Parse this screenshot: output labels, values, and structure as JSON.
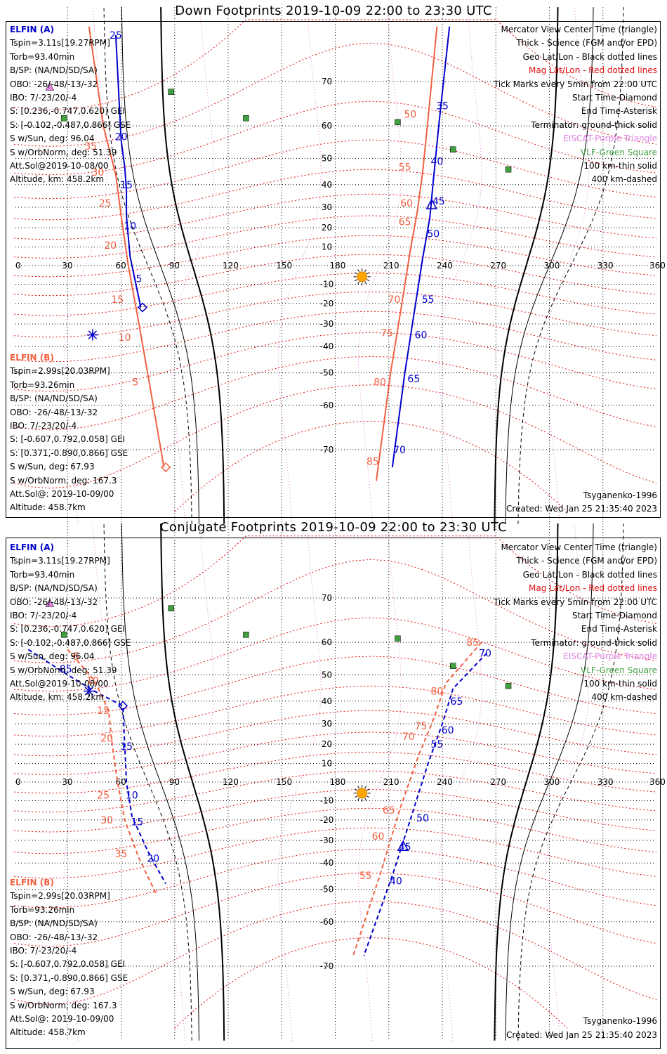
{
  "panels": [
    {
      "id": "down",
      "title": "Down Footprints 2019-10-09 22:00 to 23:30 UTC",
      "sat_a": {
        "name": "ELFIN (A)",
        "lines": [
          "Tspin=3.11s[19.27RPM]",
          "Torb=93.40min",
          "B/SP: (NA/ND/SD/SA)",
          "OBO: -26/-48/-13/-32",
          "IBO: 7/-23/20/-4",
          "S: [0.236,-0.747,0.620] GEI",
          "S: [-0.102,-0.487,0.866] GSE",
          "S w/Sun, deg: 96.04",
          "S w/OrbNorm, deg: 51.39",
          "Att.Sol@2019-10-08/00",
          "Altitude, km: 458.2km"
        ]
      },
      "sat_b": {
        "name": "ELFIN (B)",
        "lines": [
          "Tspin=2.99s[20.03RPM]",
          "Torb=93.26min",
          "B/SP: (NA/ND/SD/SA)",
          "OBO: -26/-48/-13/-32",
          "IBO: 7/-23/20/-4",
          "S: [-0.607,0.792,0.058] GEI",
          "S: [0.371,-0.890,0.866] GSE",
          "S w/Sun, deg: 67.93",
          "S w/OrbNorm, deg: 167.3",
          "Att.Sol@: 2019-10-09/00",
          "Altitude: 458.7km"
        ]
      },
      "footer_left": "",
      "footer_model": "Tsyganenko-1996",
      "footer_created": "Created: Wed Jan 25 21:35:40 2023"
    },
    {
      "id": "conjugate",
      "title": "Conjugate Footprints 2019-10-09 22:00 to 23:30 UTC",
      "sat_a": {
        "name": "ELFIN (A)",
        "lines": [
          "Tspin=3.11s[19.27RPM]",
          "Torb=93.40min",
          "B/SP: (NA/ND/SD/SA)",
          "OBO: -26/-48/-13/-32",
          "IBO: 7/-23/20/-4",
          "S: [0.236,-0.747,0.620] GEI",
          "S: [-0.102,-0.487,0.866] GSE",
          "S w/Sun, deg: 96.04",
          "S w/OrbNorm, deg: 51.39",
          "Att.Sol@2019-10-08/00",
          "Altitude, km: 458.2km"
        ]
      },
      "sat_b": {
        "name": "ELFIN (B)",
        "lines": [
          "Tspin=2.99s[20.03RPM]",
          "Torb=93.26min",
          "B/SP: (NA/ND/SD/SA)",
          "OBO: -26/-48/-13/-32",
          "IBO: 7/-23/20/-4",
          "S: [-0.607,0.792,0.058] GEI",
          "S: [0.371,-0.890,0.866] GSE",
          "S w/Sun, deg: 67.93",
          "S w/OrbNorm, deg: 167.3",
          "Att.Sol@: 2019-10-09/00",
          "Altitude: 458.7km"
        ]
      },
      "footer_model": "Tsyganenko-1996",
      "footer_created": "Created: Wed Jan 25 21:35:40 2023"
    }
  ],
  "legend": [
    {
      "text": "Mercator View Center Time (triangle)",
      "color": "#000000"
    },
    {
      "text": "Thick - Science (FGM and/or EPD)",
      "color": "#000000"
    },
    {
      "text": "Geo Lat/Lon - Black dotted lines",
      "color": "#000000"
    },
    {
      "text": "Mag Lat/Lon - Red dotted lines",
      "color": "#e01010"
    },
    {
      "text": "Tick Marks every 5min from 22:00 UTC",
      "color": "#000000"
    },
    {
      "text": "Start Time-Diamond",
      "color": "#000000"
    },
    {
      "text": "End Time-Asterisk",
      "color": "#000000"
    },
    {
      "text": "Terminator: ground-thick solid",
      "color": "#000000"
    },
    {
      "text": "EISCAT-Purple Triangle",
      "color": "#e080e0"
    },
    {
      "text": "VLF-Green Square",
      "color": "#40a040"
    },
    {
      "text": "100 km-thin solid",
      "color": "#000000"
    },
    {
      "text": "400 km-dashed",
      "color": "#000000"
    }
  ],
  "colors": {
    "sat_a": "#0000cc",
    "sat_b": "#f06040",
    "mag_grid": "#e01010",
    "eiscat": "#e080e0",
    "vlf": "#40a040",
    "sun": "#ffa500"
  },
  "chart_data": [
    {
      "type": "scatter",
      "title": "Down Footprints 2019-10-09 22:00 to 23:30 UTC",
      "projection": "mercator",
      "xlim": [
        0,
        360
      ],
      "ylim": [
        -80,
        80
      ],
      "x_ticks": [
        "0",
        "30",
        "60",
        "90",
        "120",
        "150",
        "180",
        "210",
        "240",
        "270",
        "300",
        "330",
        "360"
      ],
      "y_ticks": [
        "70",
        "60",
        "50",
        "40",
        "30",
        "20",
        "10",
        "-10",
        "-20",
        "-30",
        "-40",
        "-50",
        "-60",
        "-70"
      ],
      "grid": true,
      "series": [
        {
          "name": "ELFIN (A)",
          "points": [
            {
              "lon": 57,
              "lat": 77
            },
            {
              "lon": 60,
              "lat": 56
            },
            {
              "lon": 62,
              "lat": 47
            },
            {
              "lon": 63,
              "lat": 38
            },
            {
              "lon": 63,
              "lat": 26
            },
            {
              "lon": 65,
              "lat": 5
            },
            {
              "lon": 71,
              "lat": -22
            }
          ],
          "tick_labels": [
            {
              "label": "25",
              "lon": 57,
              "lat": 77
            },
            {
              "label": "20",
              "lon": 60,
              "lat": 57
            },
            {
              "label": "15",
              "lon": 63,
              "lat": 40
            },
            {
              "label": "10",
              "lon": 65,
              "lat": 21
            },
            {
              "label": "5",
              "lon": 70,
              "lat": -7
            }
          ]
        },
        {
          "name": "ELFIN (A) pass 2",
          "points": [
            {
              "lon": 244,
              "lat": 78
            },
            {
              "lon": 238,
              "lat": 60
            },
            {
              "lon": 235,
              "lat": 42
            },
            {
              "lon": 233,
              "lat": 25
            },
            {
              "lon": 229,
              "lat": 4
            },
            {
              "lon": 224,
              "lat": -26
            },
            {
              "lon": 219,
              "lat": -50
            },
            {
              "lon": 212,
              "lat": -73
            }
          ],
          "tick_labels": [
            {
              "label": "35",
              "lon": 240,
              "lat": 65
            },
            {
              "label": "40",
              "lon": 237,
              "lat": 49
            },
            {
              "label": "45",
              "lon": 238,
              "lat": 33
            },
            {
              "label": "50",
              "lon": 235,
              "lat": 17
            },
            {
              "label": "55",
              "lon": 232,
              "lat": -18
            },
            {
              "label": "60",
              "lon": 228,
              "lat": -35
            },
            {
              "label": "65",
              "lon": 224,
              "lat": -52
            },
            {
              "label": "70",
              "lon": 216,
              "lat": -70
            }
          ]
        },
        {
          "name": "ELFIN (B)",
          "points": [
            {
              "lon": 42,
              "lat": 78
            },
            {
              "lon": 50,
              "lat": 60
            },
            {
              "lon": 57,
              "lat": 44
            },
            {
              "lon": 60,
              "lat": 26
            },
            {
              "lon": 64,
              "lat": 0
            },
            {
              "lon": 70,
              "lat": -30
            },
            {
              "lon": 76,
              "lat": -54
            },
            {
              "lon": 84,
              "lat": -73
            }
          ],
          "tick_labels": [
            {
              "label": "35",
              "lon": 43,
              "lat": 54
            },
            {
              "label": "30",
              "lon": 47,
              "lat": 45
            },
            {
              "label": "25",
              "lon": 51,
              "lat": 32
            },
            {
              "label": "20",
              "lon": 54,
              "lat": 11
            },
            {
              "label": "15",
              "lon": 58,
              "lat": -18
            },
            {
              "label": "10",
              "lon": 62,
              "lat": -36
            },
            {
              "label": "5",
              "lon": 68,
              "lat": -53
            }
          ]
        },
        {
          "name": "ELFIN (B) pass 2",
          "points": [
            {
              "lon": 237,
              "lat": 78
            },
            {
              "lon": 232,
              "lat": 62
            },
            {
              "lon": 229,
              "lat": 45
            },
            {
              "lon": 226,
              "lat": 28
            },
            {
              "lon": 222,
              "lat": 8
            },
            {
              "lon": 217,
              "lat": -22
            },
            {
              "lon": 211,
              "lat": -50
            },
            {
              "lon": 203,
              "lat": -75
            }
          ],
          "tick_labels": [
            {
              "label": "50",
              "lon": 222,
              "lat": 63
            },
            {
              "label": "55",
              "lon": 219,
              "lat": 47
            },
            {
              "label": "60",
              "lon": 220,
              "lat": 32
            },
            {
              "label": "65",
              "lon": 219,
              "lat": 23
            },
            {
              "label": "70",
              "lon": 213,
              "lat": -18
            },
            {
              "label": "75",
              "lon": 209,
              "lat": -34
            },
            {
              "label": "80",
              "lon": 205,
              "lat": -53
            },
            {
              "label": "85",
              "lon": 201,
              "lat": -72
            }
          ]
        }
      ],
      "markers": [
        {
          "kind": "start-diamond",
          "sat": "A",
          "lon": 72,
          "lat": -22
        },
        {
          "kind": "end-asterisk",
          "sat": "A",
          "lon": 44,
          "lat": -35
        },
        {
          "kind": "center-triangle",
          "sat": "A",
          "lon": 234,
          "lat": 31
        },
        {
          "kind": "start-diamond",
          "sat": "B",
          "lon": 85,
          "lat": -73
        },
        {
          "kind": "eiscat-triangle",
          "lon": 20,
          "lat": 69
        },
        {
          "kind": "vlf-square",
          "lon": 88,
          "lat": 68
        },
        {
          "kind": "vlf-square",
          "lon": 28,
          "lat": 62
        },
        {
          "kind": "vlf-square",
          "lon": 130,
          "lat": 62
        },
        {
          "kind": "vlf-square",
          "lon": 215,
          "lat": 61
        },
        {
          "kind": "vlf-square",
          "lon": 246,
          "lat": 53
        },
        {
          "kind": "vlf-square",
          "lon": 277,
          "lat": 46
        },
        {
          "kind": "sun",
          "lon": 195,
          "lat": -6
        }
      ]
    },
    {
      "type": "scatter",
      "title": "Conjugate Footprints 2019-10-09 22:00 to 23:30 UTC",
      "projection": "mercator",
      "xlim": [
        0,
        360
      ],
      "ylim": [
        -80,
        80
      ],
      "x_ticks": [
        "0",
        "30",
        "60",
        "90",
        "120",
        "150",
        "180",
        "210",
        "240",
        "270",
        "300",
        "330",
        "360"
      ],
      "y_ticks": [
        "70",
        "60",
        "50",
        "40",
        "30",
        "20",
        "10",
        "-10",
        "-20",
        "-30",
        "-40",
        "-50",
        "-60",
        "-70"
      ],
      "grid": true,
      "series": [
        {
          "name": "ELFIN (A)",
          "points": [
            {
              "lon": 8,
              "lat": 58
            },
            {
              "lon": 30,
              "lat": 50
            },
            {
              "lon": 45,
              "lat": 44
            },
            {
              "lon": 61,
              "lat": 38
            },
            {
              "lon": 62,
              "lat": 20
            },
            {
              "lon": 63,
              "lat": 0
            },
            {
              "lon": 66,
              "lat": -18
            },
            {
              "lon": 75,
              "lat": -35
            },
            {
              "lon": 85,
              "lat": -48
            }
          ],
          "tick_labels": [
            {
              "label": "85",
              "lon": 29,
              "lat": 52
            },
            {
              "label": "15",
              "lon": 63,
              "lat": 19
            },
            {
              "label": "10",
              "lon": 66,
              "lat": -7
            },
            {
              "label": "15",
              "lon": 69,
              "lat": -21
            },
            {
              "label": "20",
              "lon": 78,
              "lat": -38
            }
          ]
        },
        {
          "name": "ELFIN (A) pass 2",
          "points": [
            {
              "lon": 265,
              "lat": 57
            },
            {
              "lon": 246,
              "lat": 45
            },
            {
              "lon": 240,
              "lat": 30
            },
            {
              "lon": 232,
              "lat": 10
            },
            {
              "lon": 222,
              "lat": -20
            },
            {
              "lon": 212,
              "lat": -45
            },
            {
              "lon": 196,
              "lat": -68
            }
          ],
          "tick_labels": [
            {
              "label": "70",
              "lon": 264,
              "lat": 57
            },
            {
              "label": "65",
              "lon": 248,
              "lat": 40
            },
            {
              "label": "60",
              "lon": 243,
              "lat": 27
            },
            {
              "label": "55",
              "lon": 237,
              "lat": 20
            },
            {
              "label": "50",
              "lon": 229,
              "lat": -19
            },
            {
              "label": "45",
              "lon": 219,
              "lat": -33
            },
            {
              "label": "40",
              "lon": 214,
              "lat": -47
            }
          ]
        },
        {
          "name": "ELFIN (B)",
          "points": [
            {
              "lon": 30,
              "lat": 58
            },
            {
              "lon": 45,
              "lat": 48
            },
            {
              "lon": 53,
              "lat": 36
            },
            {
              "lon": 55,
              "lat": 20
            },
            {
              "lon": 58,
              "lat": 0
            },
            {
              "lon": 62,
              "lat": -20
            },
            {
              "lon": 70,
              "lat": -38
            },
            {
              "lon": 80,
              "lat": -52
            }
          ],
          "tick_labels": [
            {
              "label": "5",
              "lon": 35,
              "lat": 56
            },
            {
              "label": "10",
              "lon": 44,
              "lat": 48
            },
            {
              "label": "15",
              "lon": 50,
              "lat": 36
            },
            {
              "label": "20",
              "lon": 52,
              "lat": 23
            },
            {
              "label": "25",
              "lon": 50,
              "lat": -7
            },
            {
              "label": "30",
              "lon": 52,
              "lat": -20
            },
            {
              "label": "35",
              "lon": 60,
              "lat": -36
            }
          ]
        },
        {
          "name": "ELFIN (B) pass 2",
          "points": [
            {
              "lon": 262,
              "lat": 60
            },
            {
              "lon": 242,
              "lat": 47
            },
            {
              "lon": 235,
              "lat": 32
            },
            {
              "lon": 227,
              "lat": 15
            },
            {
              "lon": 216,
              "lat": -15
            },
            {
              "lon": 205,
              "lat": -45
            },
            {
              "lon": 190,
              "lat": -68
            }
          ],
          "tick_labels": [
            {
              "label": "85",
              "lon": 257,
              "lat": 60
            },
            {
              "label": "80",
              "lon": 237,
              "lat": 44
            },
            {
              "label": "75",
              "lon": 228,
              "lat": 29
            },
            {
              "label": "70",
              "lon": 221,
              "lat": 24
            },
            {
              "label": "65",
              "lon": 210,
              "lat": -15
            },
            {
              "label": "60",
              "lon": 204,
              "lat": -28
            },
            {
              "label": "55",
              "lon": 197,
              "lat": -45
            }
          ]
        }
      ],
      "markers": [
        {
          "kind": "start-diamond",
          "sat": "A",
          "lon": 61,
          "lat": 38
        },
        {
          "kind": "end-asterisk",
          "sat": "A",
          "lon": 42,
          "lat": 44
        },
        {
          "kind": "center-triangle",
          "sat": "A",
          "lon": 218,
          "lat": -33
        },
        {
          "kind": "eiscat-triangle",
          "lon": 20,
          "lat": 69
        },
        {
          "kind": "vlf-square",
          "lon": 88,
          "lat": 68
        },
        {
          "kind": "vlf-square",
          "lon": 28,
          "lat": 62
        },
        {
          "kind": "vlf-square",
          "lon": 130,
          "lat": 62
        },
        {
          "kind": "vlf-square",
          "lon": 215,
          "lat": 61
        },
        {
          "kind": "vlf-square",
          "lon": 246,
          "lat": 53
        },
        {
          "kind": "vlf-square",
          "lon": 277,
          "lat": 46
        },
        {
          "kind": "sun",
          "lon": 195,
          "lat": -6
        }
      ]
    }
  ]
}
